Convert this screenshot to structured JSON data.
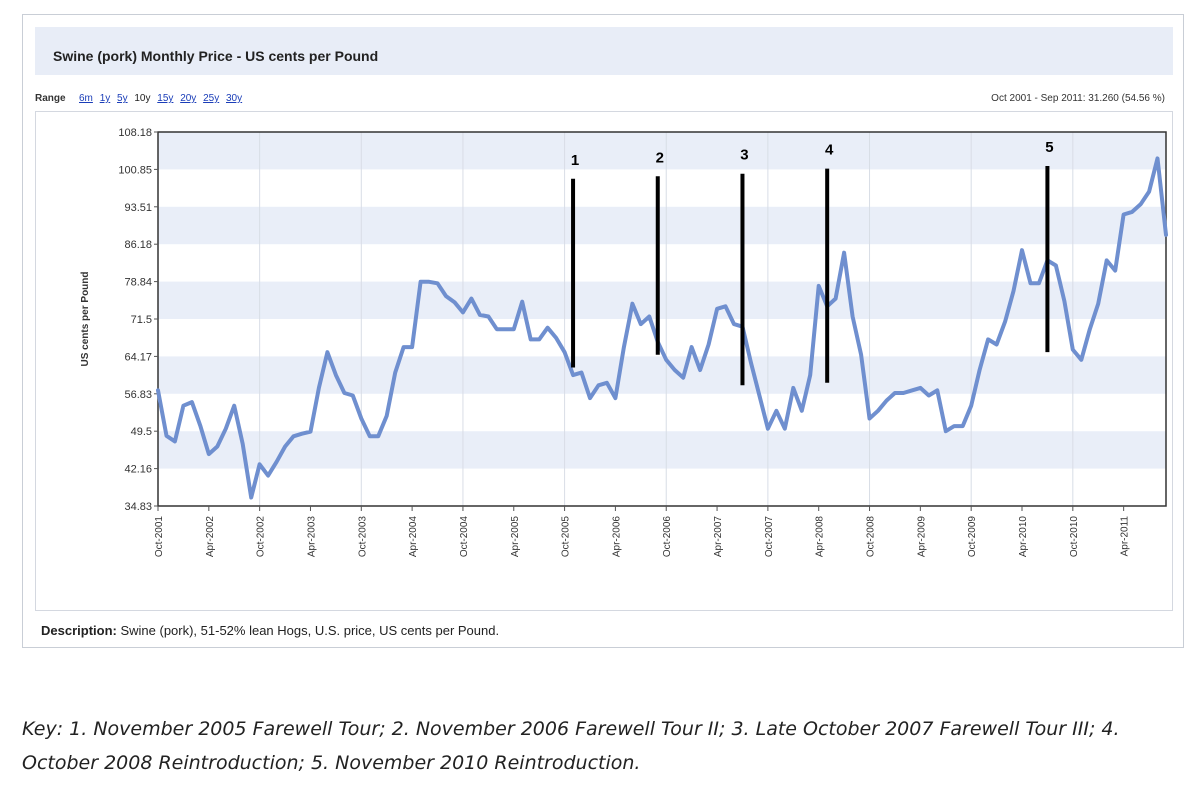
{
  "title": "Swine (pork) Monthly Price - US cents per Pound",
  "range": {
    "label": "Range",
    "options": [
      "6m",
      "1y",
      "5y",
      "10y",
      "15y",
      "20y",
      "25y",
      "30y"
    ],
    "selected": "10y",
    "summary": "Oct 2001 - Sep 2011: 31.260 (54.56 %)"
  },
  "description": {
    "label": "Description:",
    "text": "Swine (pork), 51-52% lean Hogs, U.S. price, US cents per Pound."
  },
  "key": "Key: 1. November 2005 Farewell Tour; 2. November 2006 Farewell Tour II; 3. Late October 2007 Farewell Tour III; 4. October 2008 Reintroduction; 5. November 2010 Reintroduction.",
  "colors": {
    "line": "#6f8fcf",
    "band": "#e9eef8",
    "marker": "#000000"
  },
  "chart_data": {
    "type": "line",
    "title": "Swine (pork) Monthly Price - US cents per Pound",
    "ylabel": "US cents per Pound",
    "xlabel": "",
    "ylim": [
      34.83,
      108.18
    ],
    "yticks": [
      "108.18",
      "100.85",
      "93.51",
      "86.18",
      "78.84",
      "71.5",
      "64.17",
      "56.83",
      "49.5",
      "42.16",
      "34.83"
    ],
    "xticks": [
      {
        "label": "Oct-2001",
        "index": 0
      },
      {
        "label": "Apr-2002",
        "index": 6
      },
      {
        "label": "Oct-2002",
        "index": 12
      },
      {
        "label": "Apr-2003",
        "index": 18
      },
      {
        "label": "Oct-2003",
        "index": 24
      },
      {
        "label": "Apr-2004",
        "index": 30
      },
      {
        "label": "Oct-2004",
        "index": 36
      },
      {
        "label": "Apr-2005",
        "index": 42
      },
      {
        "label": "Oct-2005",
        "index": 48
      },
      {
        "label": "Apr-2006",
        "index": 54
      },
      {
        "label": "Oct-2006",
        "index": 60
      },
      {
        "label": "Apr-2007",
        "index": 66
      },
      {
        "label": "Oct-2007",
        "index": 72
      },
      {
        "label": "Apr-2008",
        "index": 78
      },
      {
        "label": "Oct-2008",
        "index": 84
      },
      {
        "label": "Apr-2009",
        "index": 90
      },
      {
        "label": "Oct-2009",
        "index": 96
      },
      {
        "label": "Apr-2010",
        "index": 102
      },
      {
        "label": "Oct-2010",
        "index": 108
      },
      {
        "label": "Apr-2011",
        "index": 114
      }
    ],
    "grid": true,
    "legend": "none",
    "series": [
      {
        "values": [
          57.5,
          48.6,
          47.5,
          54.5,
          55.2,
          50.5,
          45.0,
          46.5,
          50.0,
          54.5,
          47.0,
          36.5,
          43.0,
          40.8,
          43.5,
          46.5,
          48.5,
          49.0,
          49.4,
          58.0,
          65.0,
          60.5,
          57.0,
          56.5,
          52.0,
          48.5,
          48.5,
          52.5,
          61.0,
          66.0,
          66.0,
          78.8,
          78.8,
          78.5,
          76.0,
          74.8,
          72.8,
          75.5,
          72.3,
          72.0,
          69.5,
          69.5,
          69.5,
          74.9,
          67.5,
          67.5,
          69.8,
          67.8,
          65.0,
          60.5,
          61.0,
          56.0,
          58.5,
          59.0,
          56.0,
          66.0,
          74.5,
          70.5,
          72.0,
          67.0,
          63.5,
          61.5,
          60.0,
          66.0,
          61.5,
          66.5,
          73.5,
          74.0,
          70.5,
          70.0,
          63.0,
          56.5,
          50.0,
          53.5,
          50.0,
          58.0,
          53.5,
          60.5,
          78.0,
          74.0,
          75.5,
          84.5,
          72.0,
          64.5,
          52.0,
          53.5,
          55.5,
          57.0,
          57.0,
          57.5,
          58.0,
          56.5,
          57.5,
          49.5,
          50.5,
          50.5,
          54.5,
          61.5,
          67.5,
          66.5,
          71.0,
          77.0,
          85.0,
          78.5,
          78.5,
          83.0,
          82.0,
          75.0,
          65.5,
          63.5,
          69.5,
          74.5,
          83.0,
          81.0,
          92.0,
          92.5,
          94.0,
          96.5,
          103.0,
          88.0
        ]
      }
    ],
    "markers": [
      {
        "label": "1",
        "index": 49,
        "top": 99.0,
        "bottom": 62.0
      },
      {
        "label": "2",
        "index": 59,
        "top": 99.5,
        "bottom": 64.5
      },
      {
        "label": "3",
        "index": 69,
        "top": 100.0,
        "bottom": 58.5
      },
      {
        "label": "4",
        "index": 79,
        "top": 101.0,
        "bottom": 59.0
      },
      {
        "label": "5",
        "index": 105,
        "top": 101.5,
        "bottom": 65.0
      }
    ]
  }
}
